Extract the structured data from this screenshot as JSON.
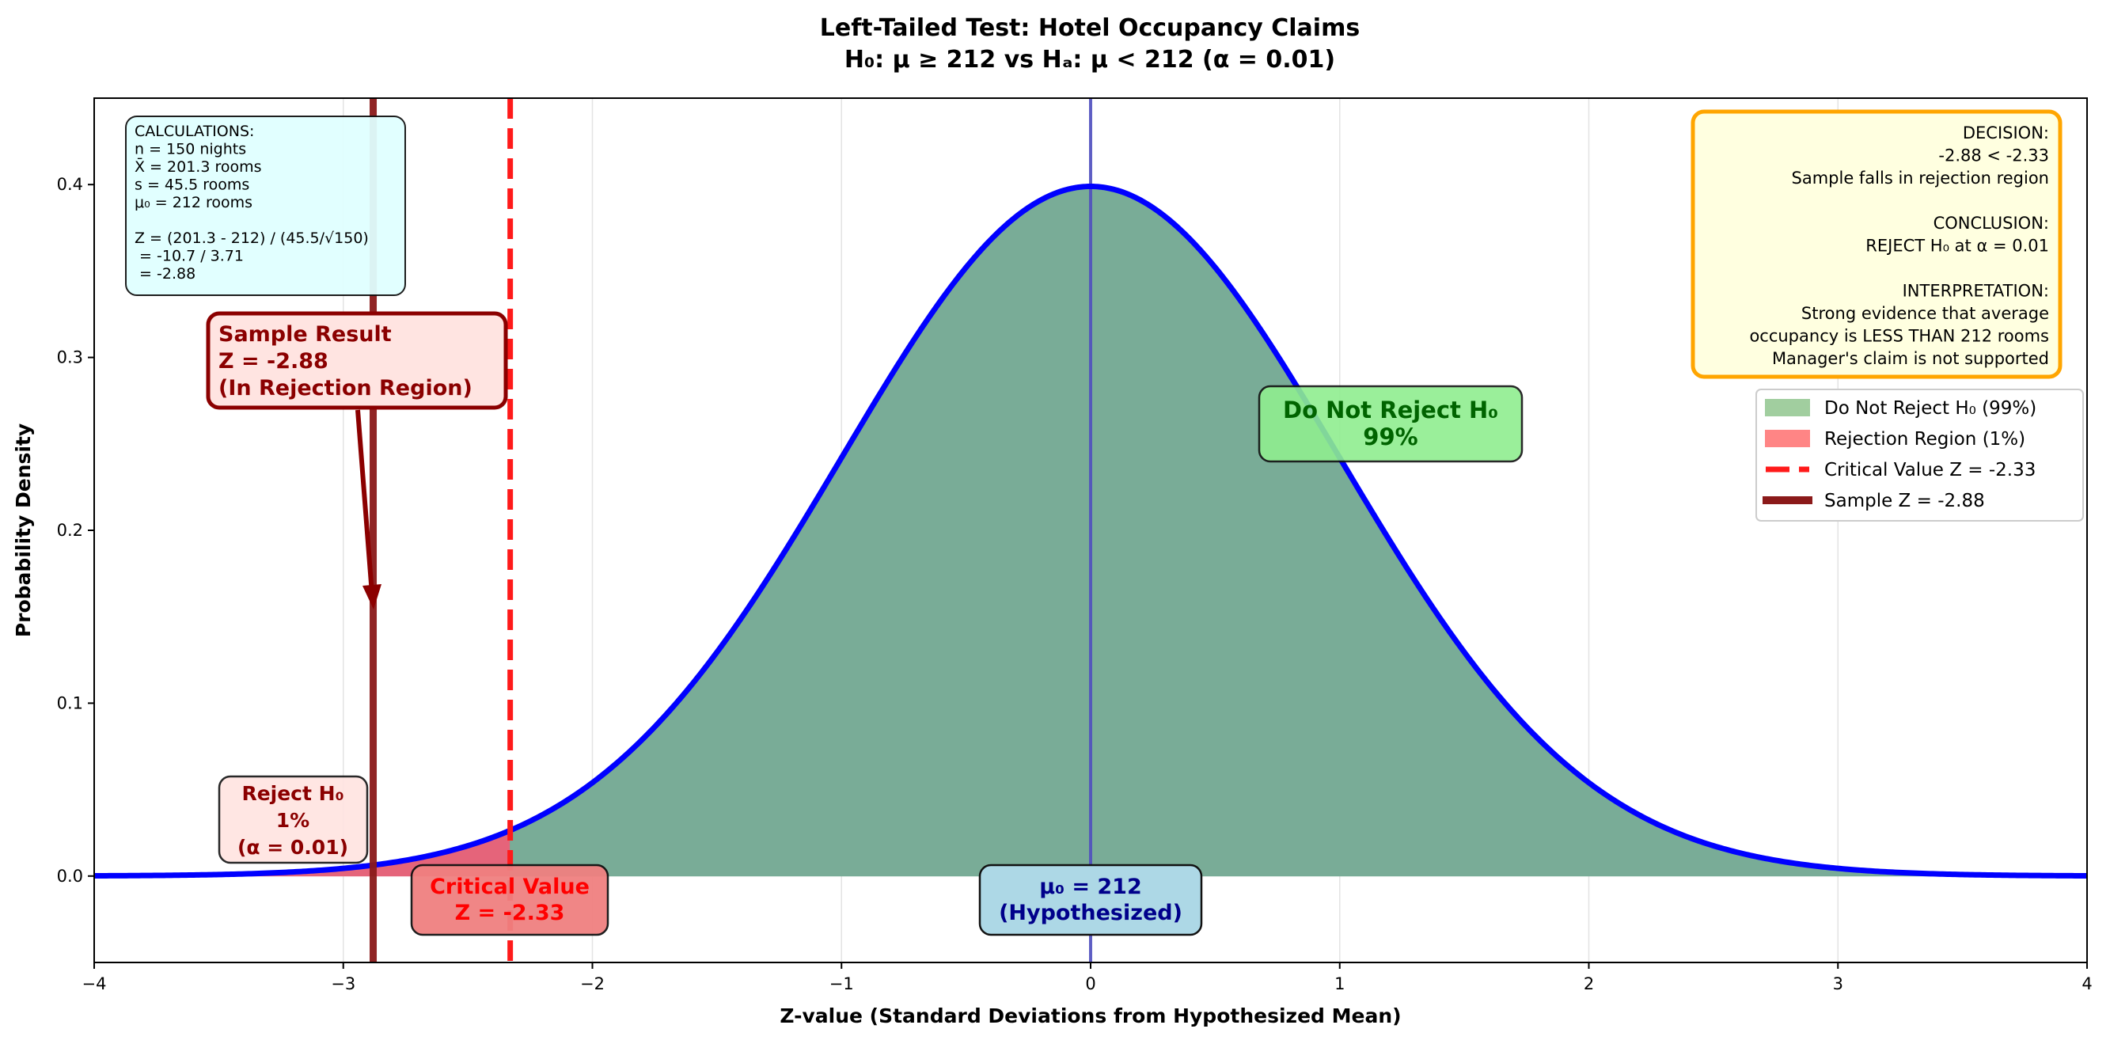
{
  "chart_data": {
    "type": "area",
    "title": "Left-Tailed Test: Hotel Occupancy Claims",
    "subtitle": "H₀: μ ≥ 212  vs  Hₐ: μ < 212  (α = 0.01)",
    "xlabel": "Z-value (Standard Deviations from Hypothesized Mean)",
    "ylabel": "Probability Density",
    "xlim": [
      -4,
      4
    ],
    "ylim": [
      -0.05,
      0.45
    ],
    "xticks": [
      -4,
      -3,
      -2,
      -1,
      0,
      1,
      2,
      3,
      4
    ],
    "xtick_labels": [
      "−4",
      "−3",
      "−2",
      "−1",
      "0",
      "1",
      "2",
      "3",
      "4"
    ],
    "yticks": [
      0.0,
      0.1,
      0.2,
      0.3,
      0.4
    ],
    "ytick_labels": [
      "0.0",
      "0.1",
      "0.2",
      "0.3",
      "0.4"
    ],
    "grid": "vertical",
    "curve": {
      "distribution": "standard normal",
      "mean": 0,
      "sd": 1,
      "color": "#0000ff"
    },
    "critical_value": -2.33,
    "sample_z": -2.88,
    "hypothesized_mean_line": 0,
    "colors": {
      "do_not_reject_fill": "#79ac97",
      "rejection_fill": "#e5647a",
      "critical_line": "#ff1a1a",
      "sample_line": "#8b1a1a",
      "mean_line": "#5050c0"
    },
    "legend": {
      "placement": "top-right",
      "entries": [
        {
          "label": "Do Not Reject H₀ (99%)",
          "kind": "patch",
          "color": "#9dcc9a"
        },
        {
          "label": "Rejection Region (1%)",
          "kind": "patch",
          "color": "#ff7f7f"
        },
        {
          "label": "Critical Value Z = -2.33",
          "kind": "dashed",
          "color": "#ff1a1a"
        },
        {
          "label": "Sample Z = -2.88",
          "kind": "solid",
          "color": "#8b1a1a"
        }
      ]
    },
    "annotations": {
      "calculations": [
        "CALCULATIONS:",
        "n = 150 nights",
        "X̄ = 201.3 rooms",
        "s = 45.5 rooms",
        "μ₀ = 212 rooms",
        "",
        "Z = (201.3 - 212) / (45.5/√150)",
        "  = -10.7 / 3.71",
        "  = -2.88"
      ],
      "sample_result": [
        "Sample Result",
        "Z = -2.88",
        "(In Rejection Region)"
      ],
      "do_not_reject": [
        "Do Not Reject H₀",
        "99%"
      ],
      "reject": [
        "Reject H₀",
        "1%",
        "(α = 0.01)"
      ],
      "critical_value": [
        "Critical Value",
        "Z = -2.33"
      ],
      "mu0": [
        "μ₀ = 212",
        "(Hypothesized)"
      ],
      "decision": [
        "DECISION:",
        "-2.88 < -2.33",
        "Sample falls in rejection region",
        "",
        "CONCLUSION:",
        "REJECT H₀ at α = 0.01",
        "",
        "INTERPRETATION:",
        "Strong evidence that average",
        "occupancy is LESS THAN 212 rooms",
        "Manager's claim is not supported"
      ]
    }
  }
}
